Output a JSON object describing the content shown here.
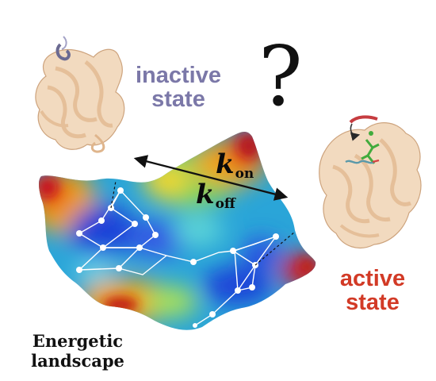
{
  "labels": {
    "inactive": "inactive\nstate",
    "active": "active\nstate",
    "landscape": "Energetic\nlandscape",
    "question": "?",
    "k_on": {
      "symbol": "k",
      "sub": "on"
    },
    "k_off": {
      "symbol": "k",
      "sub": "off"
    }
  },
  "colors": {
    "inactive_text": "#7b78a8",
    "active_text": "#d23a26",
    "protein": "#e9c6a1",
    "protein_outline": "#c89a70",
    "surface_low": "#1d43d8",
    "surface_high": "#d91b1b",
    "network": "#ffffff"
  },
  "icons": {
    "inactive_structure": "protein-ribbon-icon",
    "active_structure": "protein-ribbon-with-ligand-icon",
    "transition_arrow": "double-headed-arrow-icon"
  }
}
